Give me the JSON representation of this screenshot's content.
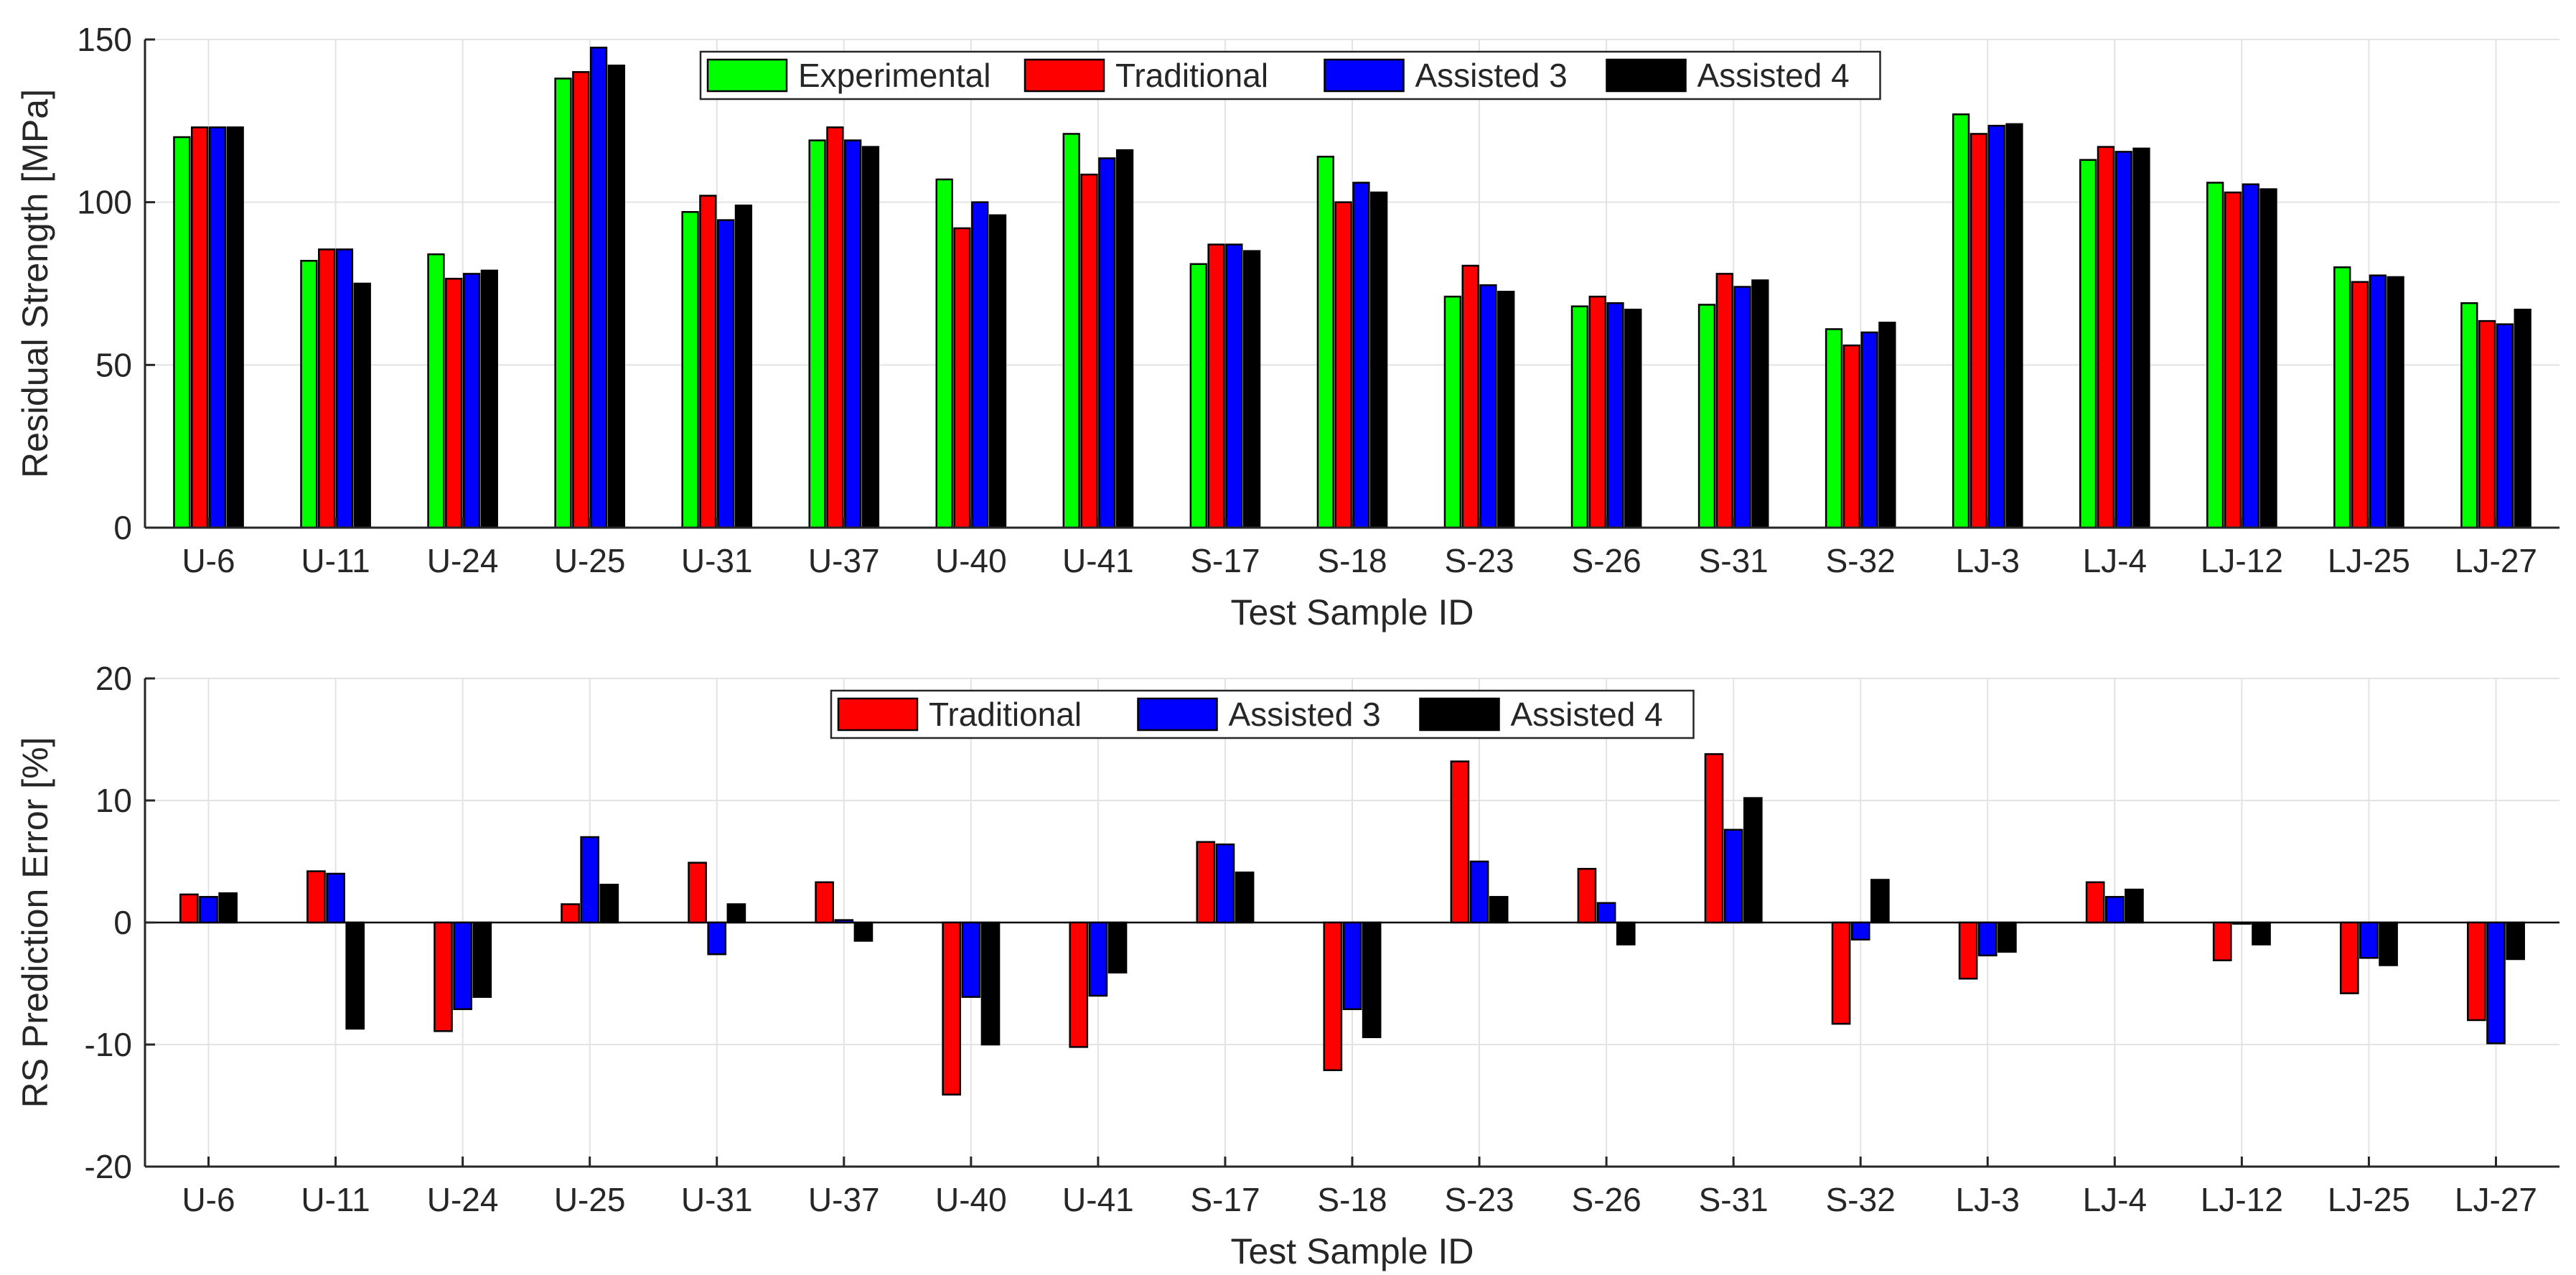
{
  "chart_data": [
    {
      "type": "bar",
      "title": "",
      "xlabel": "Test Sample ID",
      "ylabel": "Residual Strength [MPa]",
      "ylim": [
        0,
        150
      ],
      "yticks": [
        0,
        50,
        100,
        150
      ],
      "grid": true,
      "legend": "top-center",
      "categories": [
        "U-6",
        "U-11",
        "U-24",
        "U-25",
        "U-31",
        "U-37",
        "U-40",
        "U-41",
        "S-17",
        "S-18",
        "S-23",
        "S-26",
        "S-31",
        "S-32",
        "LJ-3",
        "LJ-4",
        "LJ-12",
        "LJ-25",
        "LJ-27"
      ],
      "series": [
        {
          "name": "Experimental",
          "color": "#00ff00",
          "values": [
            120,
            82,
            84,
            138,
            97,
            119,
            107,
            121,
            81,
            114,
            71,
            68,
            68.5,
            61,
            127,
            113,
            106,
            80,
            69
          ]
        },
        {
          "name": "Traditional",
          "color": "#ff0000",
          "values": [
            123,
            85.5,
            76.5,
            140,
            102,
            123,
            92,
            108.5,
            87,
            100,
            80.5,
            71,
            78,
            56,
            121,
            117,
            103,
            75.5,
            63.5
          ]
        },
        {
          "name": "Assisted 3",
          "color": "#0000ff",
          "values": [
            123,
            85.5,
            78,
            147.5,
            94.5,
            119,
            100,
            113.5,
            87,
            106,
            74.5,
            69,
            74,
            60,
            123.5,
            115.5,
            105.5,
            77.5,
            62.5
          ]
        },
        {
          "name": "Assisted 4",
          "color": "#000000",
          "values": [
            123,
            75,
            79,
            142,
            99,
            117,
            96,
            116,
            85,
            103,
            72.5,
            67,
            76,
            63,
            124,
            116.5,
            104,
            77,
            67
          ]
        }
      ]
    },
    {
      "type": "bar",
      "title": "",
      "xlabel": "Test Sample ID",
      "ylabel": "RS Prediction Error [%]",
      "ylim": [
        -20,
        20
      ],
      "yticks": [
        -20,
        -10,
        0,
        10,
        20
      ],
      "grid": true,
      "legend": "top-center",
      "categories": [
        "U-6",
        "U-11",
        "U-24",
        "U-25",
        "U-31",
        "U-37",
        "U-40",
        "U-41",
        "S-17",
        "S-18",
        "S-23",
        "S-26",
        "S-31",
        "S-32",
        "LJ-3",
        "LJ-4",
        "LJ-12",
        "LJ-25",
        "LJ-27"
      ],
      "series": [
        {
          "name": "Traditional",
          "color": "#ff0000",
          "values": [
            2.3,
            4.2,
            -8.9,
            1.5,
            4.9,
            3.3,
            -14.1,
            -10.2,
            6.6,
            -12.1,
            13.2,
            4.4,
            13.8,
            -8.3,
            -4.6,
            3.3,
            -3.1,
            -5.8,
            -8.0
          ]
        },
        {
          "name": "Assisted 3",
          "color": "#0000ff",
          "values": [
            2.1,
            4.0,
            -7.1,
            7.0,
            -2.6,
            0.2,
            -6.1,
            -6.0,
            6.4,
            -7.1,
            5.0,
            1.6,
            7.6,
            -1.4,
            -2.7,
            2.1,
            -0.1,
            -2.9,
            -9.9
          ]
        },
        {
          "name": "Assisted 4",
          "color": "#000000",
          "values": [
            2.4,
            -8.7,
            -6.1,
            3.1,
            1.5,
            -1.5,
            -10.0,
            -4.1,
            4.1,
            -9.4,
            2.1,
            -1.8,
            10.2,
            3.5,
            -2.4,
            2.7,
            -1.8,
            -3.5,
            -3.0
          ]
        }
      ]
    }
  ]
}
